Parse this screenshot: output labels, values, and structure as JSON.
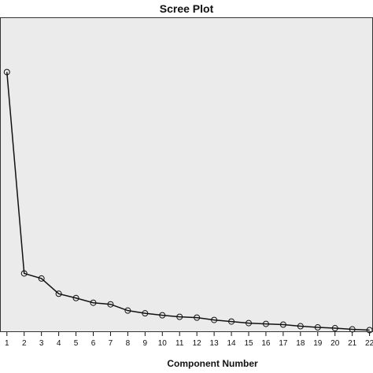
{
  "chart_data": {
    "type": "line",
    "title": "Scree Plot",
    "xlabel": "Component Number",
    "ylabel": "",
    "categories": [
      "1",
      "2",
      "3",
      "4",
      "5",
      "6",
      "7",
      "8",
      "9",
      "10",
      "11",
      "12",
      "13",
      "14",
      "15",
      "16",
      "17",
      "18",
      "19",
      "20",
      "21",
      "22"
    ],
    "series": [
      {
        "values": [
          6.6,
          1.45,
          1.32,
          0.93,
          0.82,
          0.7,
          0.66,
          0.5,
          0.43,
          0.38,
          0.34,
          0.32,
          0.26,
          0.22,
          0.18,
          0.16,
          0.14,
          0.1,
          0.07,
          0.05,
          0.02,
          0.0
        ]
      }
    ],
    "ylim": [
      -0.05,
      8.0
    ],
    "xlim": [
      0.6,
      22.2
    ],
    "grid": false,
    "legend": "none",
    "marker": "open-circle",
    "colors": {
      "plot_background": "#ebebeb",
      "line": "#111111"
    }
  }
}
